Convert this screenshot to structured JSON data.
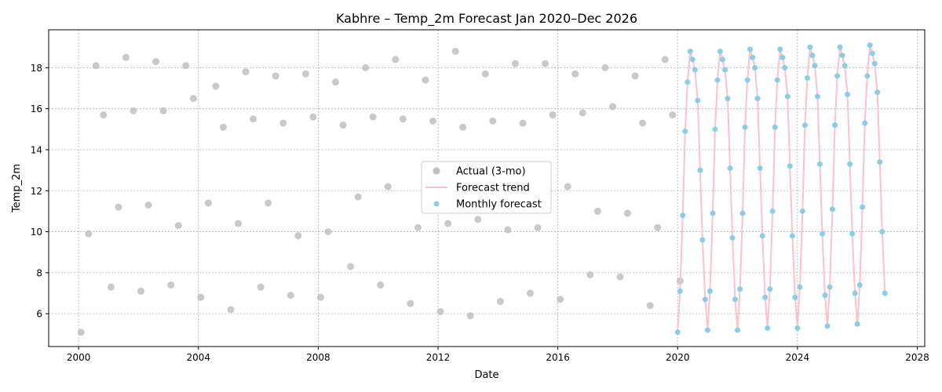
{
  "chart_data": {
    "type": "scatter",
    "title": "Kabhre – Temp_2m Forecast Jan 2020–Dec 2026",
    "xlabel": "Date",
    "ylabel": "Temp_2m",
    "xlim": [
      1999,
      2028.25
    ],
    "ylim": [
      4.4,
      19.85
    ],
    "x_ticks": [
      2000,
      2004,
      2008,
      2012,
      2016,
      2020,
      2024,
      2028
    ],
    "y_ticks": [
      6,
      8,
      10,
      12,
      14,
      16,
      18
    ],
    "grid": true,
    "legend_position": "center-right",
    "colors": {
      "actual": "#c0c0c0",
      "trend": "#ffc0cb",
      "forecast": "#87ceeb"
    },
    "series": [
      {
        "name": "Actual (3-mo)",
        "kind": "scatter",
        "points": [
          [
            2000.08,
            5.1
          ],
          [
            2000.33,
            9.9
          ],
          [
            2000.58,
            18.1
          ],
          [
            2000.83,
            15.7
          ],
          [
            2001.08,
            7.3
          ],
          [
            2001.33,
            11.2
          ],
          [
            2001.58,
            18.5
          ],
          [
            2001.83,
            15.9
          ],
          [
            2002.08,
            7.1
          ],
          [
            2002.33,
            11.3
          ],
          [
            2002.58,
            18.3
          ],
          [
            2002.83,
            15.9
          ],
          [
            2003.08,
            7.4
          ],
          [
            2003.33,
            10.3
          ],
          [
            2003.58,
            18.1
          ],
          [
            2003.83,
            16.5
          ],
          [
            2004.08,
            6.8
          ],
          [
            2004.33,
            11.4
          ],
          [
            2004.58,
            17.1
          ],
          [
            2004.83,
            15.1
          ],
          [
            2005.08,
            6.2
          ],
          [
            2005.33,
            10.4
          ],
          [
            2005.58,
            17.8
          ],
          [
            2005.83,
            15.5
          ],
          [
            2006.08,
            7.3
          ],
          [
            2006.33,
            11.4
          ],
          [
            2006.58,
            17.6
          ],
          [
            2006.83,
            15.3
          ],
          [
            2007.08,
            6.9
          ],
          [
            2007.33,
            9.8
          ],
          [
            2007.58,
            17.7
          ],
          [
            2007.83,
            15.6
          ],
          [
            2008.08,
            6.8
          ],
          [
            2008.33,
            10.0
          ],
          [
            2008.58,
            17.3
          ],
          [
            2008.83,
            15.2
          ],
          [
            2009.08,
            8.3
          ],
          [
            2009.33,
            11.7
          ],
          [
            2009.58,
            18.0
          ],
          [
            2009.83,
            15.6
          ],
          [
            2010.08,
            7.4
          ],
          [
            2010.33,
            12.2
          ],
          [
            2010.58,
            18.4
          ],
          [
            2010.83,
            15.5
          ],
          [
            2011.08,
            6.5
          ],
          [
            2011.33,
            10.2
          ],
          [
            2011.58,
            17.4
          ],
          [
            2011.83,
            15.4
          ],
          [
            2012.08,
            6.1
          ],
          [
            2012.33,
            10.4
          ],
          [
            2012.58,
            18.8
          ],
          [
            2012.83,
            15.1
          ],
          [
            2013.08,
            5.9
          ],
          [
            2013.33,
            10.6
          ],
          [
            2013.58,
            17.7
          ],
          [
            2013.83,
            15.4
          ],
          [
            2014.08,
            6.6
          ],
          [
            2014.33,
            10.1
          ],
          [
            2014.58,
            18.2
          ],
          [
            2014.83,
            15.3
          ],
          [
            2015.08,
            7.0
          ],
          [
            2015.33,
            10.2
          ],
          [
            2015.58,
            18.2
          ],
          [
            2015.83,
            15.7
          ],
          [
            2016.08,
            6.7
          ],
          [
            2016.33,
            12.2
          ],
          [
            2016.58,
            17.7
          ],
          [
            2016.83,
            15.8
          ],
          [
            2017.08,
            7.9
          ],
          [
            2017.33,
            11.0
          ],
          [
            2017.58,
            18.0
          ],
          [
            2017.83,
            16.1
          ],
          [
            2018.08,
            7.8
          ],
          [
            2018.33,
            10.9
          ],
          [
            2018.58,
            17.6
          ],
          [
            2018.83,
            15.3
          ],
          [
            2019.08,
            6.4
          ],
          [
            2019.33,
            10.2
          ],
          [
            2019.58,
            18.4
          ],
          [
            2019.83,
            15.7
          ],
          [
            2020.08,
            7.6
          ]
        ]
      },
      {
        "name": "Forecast trend",
        "kind": "line",
        "points": [
          [
            2020.0,
            5.1
          ],
          [
            2020.08,
            7.1
          ],
          [
            2020.17,
            10.8
          ],
          [
            2020.25,
            14.9
          ],
          [
            2020.33,
            17.3
          ],
          [
            2020.42,
            18.8
          ],
          [
            2020.5,
            18.4
          ],
          [
            2020.58,
            17.9
          ],
          [
            2020.67,
            16.4
          ],
          [
            2020.75,
            13.0
          ],
          [
            2020.83,
            9.6
          ],
          [
            2020.92,
            6.7
          ],
          [
            2021.0,
            5.2
          ],
          [
            2021.08,
            7.1
          ],
          [
            2021.17,
            10.9
          ],
          [
            2021.25,
            15.0
          ],
          [
            2021.33,
            17.4
          ],
          [
            2021.42,
            18.8
          ],
          [
            2021.5,
            18.4
          ],
          [
            2021.58,
            17.9
          ],
          [
            2021.67,
            16.5
          ],
          [
            2021.75,
            13.1
          ],
          [
            2021.83,
            9.7
          ],
          [
            2021.92,
            6.7
          ],
          [
            2022.0,
            5.2
          ],
          [
            2022.08,
            7.2
          ],
          [
            2022.17,
            10.9
          ],
          [
            2022.25,
            15.1
          ],
          [
            2022.33,
            17.4
          ],
          [
            2022.42,
            18.9
          ],
          [
            2022.5,
            18.5
          ],
          [
            2022.58,
            18.0
          ],
          [
            2022.67,
            16.5
          ],
          [
            2022.75,
            13.1
          ],
          [
            2022.83,
            9.8
          ],
          [
            2022.92,
            6.8
          ],
          [
            2023.0,
            5.3
          ],
          [
            2023.08,
            7.2
          ],
          [
            2023.17,
            11.0
          ],
          [
            2023.25,
            15.1
          ],
          [
            2023.33,
            17.4
          ],
          [
            2023.42,
            18.9
          ],
          [
            2023.5,
            18.5
          ],
          [
            2023.58,
            18.0
          ],
          [
            2023.67,
            16.6
          ],
          [
            2023.75,
            13.2
          ],
          [
            2023.83,
            9.8
          ],
          [
            2023.92,
            6.8
          ],
          [
            2024.0,
            5.3
          ],
          [
            2024.08,
            7.3
          ],
          [
            2024.17,
            11.0
          ],
          [
            2024.25,
            15.2
          ],
          [
            2024.33,
            17.5
          ],
          [
            2024.42,
            19.0
          ],
          [
            2024.5,
            18.6
          ],
          [
            2024.58,
            18.1
          ],
          [
            2024.67,
            16.6
          ],
          [
            2024.75,
            13.3
          ],
          [
            2024.83,
            9.9
          ],
          [
            2024.92,
            6.9
          ],
          [
            2025.0,
            5.4
          ],
          [
            2025.08,
            7.3
          ],
          [
            2025.17,
            11.1
          ],
          [
            2025.25,
            15.2
          ],
          [
            2025.33,
            17.6
          ],
          [
            2025.42,
            19.0
          ],
          [
            2025.5,
            18.6
          ],
          [
            2025.58,
            18.1
          ],
          [
            2025.67,
            16.7
          ],
          [
            2025.75,
            13.3
          ],
          [
            2025.83,
            9.9
          ],
          [
            2025.92,
            7.0
          ],
          [
            2026.0,
            5.5
          ],
          [
            2026.08,
            7.4
          ],
          [
            2026.17,
            11.2
          ],
          [
            2026.25,
            15.3
          ],
          [
            2026.33,
            17.6
          ],
          [
            2026.42,
            19.1
          ],
          [
            2026.5,
            18.7
          ],
          [
            2026.58,
            18.2
          ],
          [
            2026.67,
            16.8
          ],
          [
            2026.75,
            13.4
          ],
          [
            2026.83,
            10.0
          ],
          [
            2026.92,
            7.0
          ]
        ]
      },
      {
        "name": "Monthly forecast",
        "kind": "scatter",
        "points": [
          [
            2020.0,
            5.1
          ],
          [
            2020.08,
            7.1
          ],
          [
            2020.17,
            10.8
          ],
          [
            2020.25,
            14.9
          ],
          [
            2020.33,
            17.3
          ],
          [
            2020.42,
            18.8
          ],
          [
            2020.5,
            18.4
          ],
          [
            2020.58,
            17.9
          ],
          [
            2020.67,
            16.4
          ],
          [
            2020.75,
            13.0
          ],
          [
            2020.83,
            9.6
          ],
          [
            2020.92,
            6.7
          ],
          [
            2021.0,
            5.2
          ],
          [
            2021.08,
            7.1
          ],
          [
            2021.17,
            10.9
          ],
          [
            2021.25,
            15.0
          ],
          [
            2021.33,
            17.4
          ],
          [
            2021.42,
            18.8
          ],
          [
            2021.5,
            18.4
          ],
          [
            2021.58,
            17.9
          ],
          [
            2021.67,
            16.5
          ],
          [
            2021.75,
            13.1
          ],
          [
            2021.83,
            9.7
          ],
          [
            2021.92,
            6.7
          ],
          [
            2022.0,
            5.2
          ],
          [
            2022.08,
            7.2
          ],
          [
            2022.17,
            10.9
          ],
          [
            2022.25,
            15.1
          ],
          [
            2022.33,
            17.4
          ],
          [
            2022.42,
            18.9
          ],
          [
            2022.5,
            18.5
          ],
          [
            2022.58,
            18.0
          ],
          [
            2022.67,
            16.5
          ],
          [
            2022.75,
            13.1
          ],
          [
            2022.83,
            9.8
          ],
          [
            2022.92,
            6.8
          ],
          [
            2023.0,
            5.3
          ],
          [
            2023.08,
            7.2
          ],
          [
            2023.17,
            11.0
          ],
          [
            2023.25,
            15.1
          ],
          [
            2023.33,
            17.4
          ],
          [
            2023.42,
            18.9
          ],
          [
            2023.5,
            18.5
          ],
          [
            2023.58,
            18.0
          ],
          [
            2023.67,
            16.6
          ],
          [
            2023.75,
            13.2
          ],
          [
            2023.83,
            9.8
          ],
          [
            2023.92,
            6.8
          ],
          [
            2024.0,
            5.3
          ],
          [
            2024.08,
            7.3
          ],
          [
            2024.17,
            11.0
          ],
          [
            2024.25,
            15.2
          ],
          [
            2024.33,
            17.5
          ],
          [
            2024.42,
            19.0
          ],
          [
            2024.5,
            18.6
          ],
          [
            2024.58,
            18.1
          ],
          [
            2024.67,
            16.6
          ],
          [
            2024.75,
            13.3
          ],
          [
            2024.83,
            9.9
          ],
          [
            2024.92,
            6.9
          ],
          [
            2025.0,
            5.4
          ],
          [
            2025.08,
            7.3
          ],
          [
            2025.17,
            11.1
          ],
          [
            2025.25,
            15.2
          ],
          [
            2025.33,
            17.6
          ],
          [
            2025.42,
            19.0
          ],
          [
            2025.5,
            18.6
          ],
          [
            2025.58,
            18.1
          ],
          [
            2025.67,
            16.7
          ],
          [
            2025.75,
            13.3
          ],
          [
            2025.83,
            9.9
          ],
          [
            2025.92,
            7.0
          ],
          [
            2026.0,
            5.5
          ],
          [
            2026.08,
            7.4
          ],
          [
            2026.17,
            11.2
          ],
          [
            2026.25,
            15.3
          ],
          [
            2026.33,
            17.6
          ],
          [
            2026.42,
            19.1
          ],
          [
            2026.5,
            18.7
          ],
          [
            2026.58,
            18.2
          ],
          [
            2026.67,
            16.8
          ],
          [
            2026.75,
            13.4
          ],
          [
            2026.83,
            10.0
          ],
          [
            2026.92,
            7.0
          ]
        ]
      }
    ]
  }
}
